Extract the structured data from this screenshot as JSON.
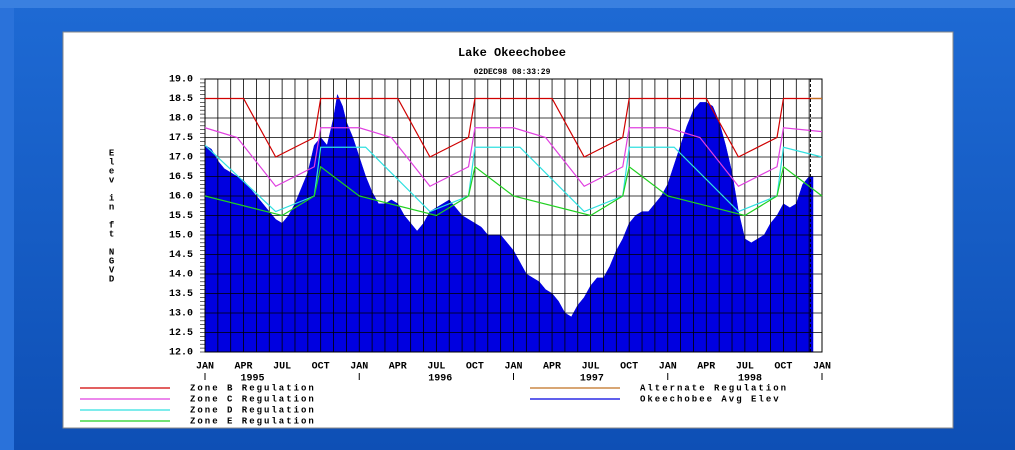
{
  "chart_data": {
    "type": "line",
    "title": "Lake Okeechobee",
    "subtitle": "02DEC98  08:33:29",
    "ylabel": "Elev in ft NGVD",
    "xlim": [
      0,
      48
    ],
    "ylim": [
      12,
      19
    ],
    "yticks": [
      {
        "value": 12,
        "label": "12.0"
      },
      {
        "value": 12.5,
        "label": "12.5"
      },
      {
        "value": 13,
        "label": "13.0"
      },
      {
        "value": 13.5,
        "label": "13.5"
      },
      {
        "value": 14,
        "label": "14.0"
      },
      {
        "value": 14.5,
        "label": "14.5"
      },
      {
        "value": 15,
        "label": "15.0"
      },
      {
        "value": 15.5,
        "label": "15.5"
      },
      {
        "value": 16,
        "label": "16.0"
      },
      {
        "value": 16.5,
        "label": "16.5"
      },
      {
        "value": 17,
        "label": "17.0"
      },
      {
        "value": 17.5,
        "label": "17.5"
      },
      {
        "value": 18,
        "label": "18.0"
      },
      {
        "value": 18.5,
        "label": "18.5"
      },
      {
        "value": 19,
        "label": "19.0"
      }
    ],
    "xticks": [
      {
        "value": 0,
        "label": "JAN"
      },
      {
        "value": 3,
        "label": "APR"
      },
      {
        "value": 6,
        "label": "JUL"
      },
      {
        "value": 9,
        "label": "OCT"
      },
      {
        "value": 12,
        "label": "JAN"
      },
      {
        "value": 15,
        "label": "APR"
      },
      {
        "value": 18,
        "label": "JUL"
      },
      {
        "value": 21,
        "label": "OCT"
      },
      {
        "value": 24,
        "label": "JAN"
      },
      {
        "value": 27,
        "label": "APR"
      },
      {
        "value": 30,
        "label": "JUL"
      },
      {
        "value": 33,
        "label": "OCT"
      },
      {
        "value": 36,
        "label": "JAN"
      },
      {
        "value": 39,
        "label": "APR"
      },
      {
        "value": 42,
        "label": "JUL"
      },
      {
        "value": 45,
        "label": "OCT"
      },
      {
        "value": 48,
        "label": "JAN"
      }
    ],
    "year_labels": [
      {
        "value": 3.7,
        "label": "1995"
      },
      {
        "value": 18.3,
        "label": "1996"
      },
      {
        "value": 30.1,
        "label": "1997"
      },
      {
        "value": 42.4,
        "label": "1998"
      }
    ],
    "grid": true,
    "marker_x": 47.1,
    "series": [
      {
        "name": "Okeechobee Avg Elev",
        "color": "#0000e0",
        "fill": "area",
        "legend_column": 2,
        "x": [
          0,
          0.5,
          1,
          1.5,
          2,
          2.5,
          3,
          3.5,
          4,
          4.5,
          5,
          5.5,
          6,
          6.5,
          7,
          7.5,
          8,
          8.5,
          9,
          9.5,
          10,
          10.3,
          10.7,
          11,
          11.5,
          12,
          12.5,
          13,
          13.5,
          14,
          14.5,
          15,
          15.5,
          16,
          16.5,
          17,
          17.5,
          18,
          18.5,
          19,
          19.5,
          20,
          20.5,
          21,
          21.5,
          22,
          22.5,
          23,
          23.5,
          24,
          24.5,
          25,
          25.5,
          26,
          26.5,
          27,
          27.5,
          28,
          28.5,
          29,
          29.5,
          30,
          30.5,
          31,
          31.5,
          32,
          32.5,
          33,
          33.5,
          34,
          34.5,
          35,
          35.5,
          36,
          36.5,
          37,
          37.5,
          38,
          38.5,
          39,
          39.5,
          40,
          40.5,
          41,
          41.5,
          42,
          42.5,
          43,
          43.5,
          44,
          44.5,
          45,
          45.5,
          46,
          46.5,
          47,
          47.3
        ],
        "values": [
          17.3,
          17.2,
          16.9,
          16.7,
          16.6,
          16.5,
          16.4,
          16.2,
          16,
          15.8,
          15.6,
          15.4,
          15.3,
          15.5,
          15.8,
          16.2,
          16.6,
          17.3,
          17.5,
          17.3,
          18,
          18.6,
          18.3,
          17.9,
          17.5,
          17,
          16.5,
          16.1,
          15.8,
          15.8,
          15.9,
          15.8,
          15.5,
          15.3,
          15.1,
          15.3,
          15.6,
          15.7,
          15.8,
          15.9,
          15.7,
          15.5,
          15.4,
          15.3,
          15.2,
          15,
          15,
          15,
          14.8,
          14.6,
          14.3,
          14,
          13.9,
          13.8,
          13.6,
          13.5,
          13.3,
          13,
          12.9,
          13.2,
          13.4,
          13.7,
          13.9,
          13.9,
          14.2,
          14.6,
          14.9,
          15.3,
          15.5,
          15.6,
          15.6,
          15.8,
          16,
          16.3,
          16.8,
          17.3,
          17.8,
          18.2,
          18.4,
          18.4,
          18.3,
          17.9,
          17.3,
          16.6,
          15.6,
          14.9,
          14.8,
          14.9,
          15,
          15.3,
          15.5,
          15.8,
          15.7,
          15.8,
          16.3,
          16.5,
          16.5
        ]
      },
      {
        "name": "Zone B Regulation",
        "color": "#d00000",
        "legend_column": 1,
        "x": [
          0,
          3,
          5.5,
          8.5,
          9,
          15,
          17.5,
          20.5,
          21,
          27,
          29.5,
          32.5,
          33,
          39,
          41.5,
          44.5,
          45,
          48
        ],
        "values": [
          18.5,
          18.5,
          17,
          17.5,
          18.5,
          18.5,
          17,
          17.5,
          18.5,
          18.5,
          17,
          17.5,
          18.5,
          18.5,
          17,
          17.5,
          18.5,
          18.5
        ]
      },
      {
        "name": "Zone C Regulation",
        "color": "#e040e0",
        "legend_column": 1,
        "x": [
          0,
          2.5,
          5.5,
          8.5,
          9,
          12,
          14.5,
          17.5,
          20.5,
          21,
          24,
          26.5,
          29.5,
          32.5,
          33,
          36,
          38.5,
          41.5,
          44.5,
          45,
          48
        ],
        "values": [
          17.75,
          17.5,
          16.25,
          16.75,
          17.75,
          17.75,
          17.5,
          16.25,
          16.75,
          17.75,
          17.75,
          17.5,
          16.25,
          16.75,
          17.75,
          17.75,
          17.5,
          16.25,
          16.75,
          17.75,
          17.65
        ]
      },
      {
        "name": "Zone D Regulation",
        "color": "#30e0e0",
        "legend_column": 1,
        "x": [
          0,
          5.5,
          8.5,
          9,
          12.5,
          17.5,
          20.5,
          21,
          24.5,
          29.5,
          32.5,
          33,
          36.5,
          41.5,
          44.5,
          45,
          48
        ],
        "values": [
          17.3,
          15.6,
          16,
          17.25,
          17.25,
          15.6,
          16,
          17.25,
          17.25,
          15.6,
          16,
          17.25,
          17.25,
          15.6,
          16,
          17.25,
          17
        ]
      },
      {
        "name": "Zone E Regulation",
        "color": "#20d020",
        "legend_column": 1,
        "x": [
          0,
          6,
          8.5,
          9,
          12,
          18,
          20.5,
          21,
          24,
          30,
          32.5,
          33,
          36,
          42,
          44.5,
          45,
          48
        ],
        "values": [
          16,
          15.5,
          16,
          16.75,
          16,
          15.5,
          16,
          16.75,
          16,
          15.5,
          16,
          16.75,
          16,
          15.5,
          16,
          16.75,
          16
        ]
      },
      {
        "name": "Alternate Regulation",
        "color": "#c07020",
        "legend_column": 2,
        "x": [
          47.1,
          48
        ],
        "values": [
          18.5,
          18.5
        ]
      }
    ]
  }
}
